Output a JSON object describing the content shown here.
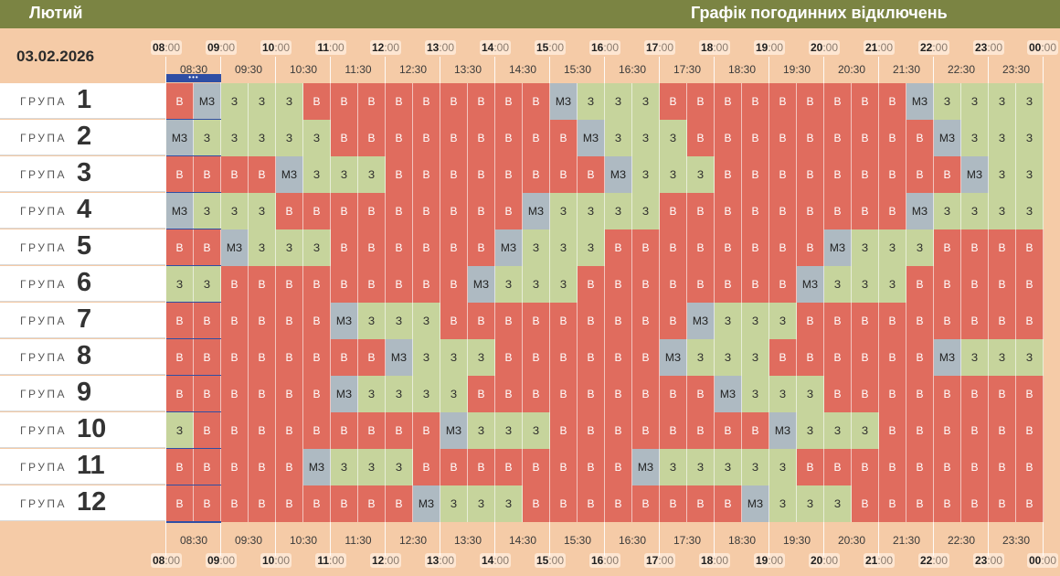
{
  "header": {
    "month": "Лютий",
    "title": "Графік погодинних відключень",
    "date": "03.02.2026"
  },
  "timeline": {
    "hours": [
      "08",
      "09",
      "10",
      "11",
      "12",
      "13",
      "14",
      "15",
      "16",
      "17",
      "18",
      "19",
      "20",
      "21",
      "22",
      "23",
      "00"
    ],
    "minutes": ":00",
    "half_hours": [
      "08:30",
      "09:30",
      "10:30",
      "11:30",
      "12:30",
      "13:30",
      "14:30",
      "15:30",
      "16:30",
      "17:30",
      "18:30",
      "19:30",
      "20:30",
      "21:30",
      "22:30",
      "23:30"
    ],
    "now_marker": "•••"
  },
  "legend_values": {
    "off": "В",
    "on": "З",
    "maybe": "МЗ"
  },
  "colors": {
    "off": "#e06c5e",
    "on": "#c6d49c",
    "maybe": "#aebac2",
    "header": "#7b8443",
    "background": "#f5cba7",
    "now": "#2f4ea4"
  },
  "group_word": "ГРУПА",
  "groups": [
    {
      "num": "1",
      "cells": [
        "В",
        "МЗ",
        "З",
        "З",
        "З",
        "В",
        "В",
        "В",
        "В",
        "В",
        "В",
        "В",
        "В",
        "В",
        "МЗ",
        "З",
        "З",
        "З",
        "В",
        "В",
        "В",
        "В",
        "В",
        "В",
        "В",
        "В",
        "В",
        "МЗ",
        "З",
        "З",
        "З",
        "З"
      ]
    },
    {
      "num": "2",
      "cells": [
        "МЗ",
        "З",
        "З",
        "З",
        "З",
        "З",
        "В",
        "В",
        "В",
        "В",
        "В",
        "В",
        "В",
        "В",
        "В",
        "МЗ",
        "З",
        "З",
        "З",
        "В",
        "В",
        "В",
        "В",
        "В",
        "В",
        "В",
        "В",
        "В",
        "МЗ",
        "З",
        "З",
        "З"
      ]
    },
    {
      "num": "3",
      "cells": [
        "В",
        "В",
        "В",
        "В",
        "МЗ",
        "З",
        "З",
        "З",
        "В",
        "В",
        "В",
        "В",
        "В",
        "В",
        "В",
        "В",
        "МЗ",
        "З",
        "З",
        "З",
        "В",
        "В",
        "В",
        "В",
        "В",
        "В",
        "В",
        "В",
        "В",
        "МЗ",
        "З",
        "З"
      ]
    },
    {
      "num": "4",
      "cells": [
        "МЗ",
        "З",
        "З",
        "З",
        "В",
        "В",
        "В",
        "В",
        "В",
        "В",
        "В",
        "В",
        "В",
        "МЗ",
        "З",
        "З",
        "З",
        "З",
        "В",
        "В",
        "В",
        "В",
        "В",
        "В",
        "В",
        "В",
        "В",
        "МЗ",
        "З",
        "З",
        "З",
        "З"
      ]
    },
    {
      "num": "5",
      "cells": [
        "В",
        "В",
        "МЗ",
        "З",
        "З",
        "З",
        "В",
        "В",
        "В",
        "В",
        "В",
        "В",
        "МЗ",
        "З",
        "З",
        "З",
        "В",
        "В",
        "В",
        "В",
        "В",
        "В",
        "В",
        "В",
        "МЗ",
        "З",
        "З",
        "З",
        "В",
        "В",
        "В",
        "В"
      ]
    },
    {
      "num": "6",
      "cells": [
        "З",
        "З",
        "В",
        "В",
        "В",
        "В",
        "В",
        "В",
        "В",
        "В",
        "В",
        "МЗ",
        "З",
        "З",
        "З",
        "В",
        "В",
        "В",
        "В",
        "В",
        "В",
        "В",
        "В",
        "МЗ",
        "З",
        "З",
        "З",
        "В",
        "В",
        "В",
        "В",
        "В"
      ]
    },
    {
      "num": "7",
      "cells": [
        "В",
        "В",
        "В",
        "В",
        "В",
        "В",
        "МЗ",
        "З",
        "З",
        "З",
        "В",
        "В",
        "В",
        "В",
        "В",
        "В",
        "В",
        "В",
        "В",
        "МЗ",
        "З",
        "З",
        "З",
        "В",
        "В",
        "В",
        "В",
        "В",
        "В",
        "В",
        "В",
        "В"
      ]
    },
    {
      "num": "8",
      "cells": [
        "В",
        "В",
        "В",
        "В",
        "В",
        "В",
        "В",
        "В",
        "МЗ",
        "З",
        "З",
        "З",
        "В",
        "В",
        "В",
        "В",
        "В",
        "В",
        "МЗ",
        "З",
        "З",
        "З",
        "В",
        "В",
        "В",
        "В",
        "В",
        "В",
        "МЗ",
        "З",
        "З",
        "З"
      ]
    },
    {
      "num": "9",
      "cells": [
        "В",
        "В",
        "В",
        "В",
        "В",
        "В",
        "МЗ",
        "З",
        "З",
        "З",
        "З",
        "В",
        "В",
        "В",
        "В",
        "В",
        "В",
        "В",
        "В",
        "В",
        "МЗ",
        "З",
        "З",
        "З",
        "В",
        "В",
        "В",
        "В",
        "В",
        "В",
        "В",
        "В"
      ]
    },
    {
      "num": "10",
      "cells": [
        "З",
        "В",
        "В",
        "В",
        "В",
        "В",
        "В",
        "В",
        "В",
        "В",
        "МЗ",
        "З",
        "З",
        "З",
        "В",
        "В",
        "В",
        "В",
        "В",
        "В",
        "В",
        "В",
        "МЗ",
        "З",
        "З",
        "З",
        "В",
        "В",
        "В",
        "В",
        "В",
        "В"
      ]
    },
    {
      "num": "11",
      "cells": [
        "В",
        "В",
        "В",
        "В",
        "В",
        "МЗ",
        "З",
        "З",
        "З",
        "В",
        "В",
        "В",
        "В",
        "В",
        "В",
        "В",
        "В",
        "МЗ",
        "З",
        "З",
        "З",
        "З",
        "З",
        "В",
        "В",
        "В",
        "В",
        "В",
        "В",
        "В",
        "В",
        "В"
      ]
    },
    {
      "num": "12",
      "cells": [
        "В",
        "В",
        "В",
        "В",
        "В",
        "В",
        "В",
        "В",
        "В",
        "МЗ",
        "З",
        "З",
        "З",
        "В",
        "В",
        "В",
        "В",
        "В",
        "В",
        "В",
        "В",
        "МЗ",
        "З",
        "З",
        "З",
        "В",
        "В",
        "В",
        "В",
        "В",
        "В",
        "В"
      ]
    }
  ]
}
